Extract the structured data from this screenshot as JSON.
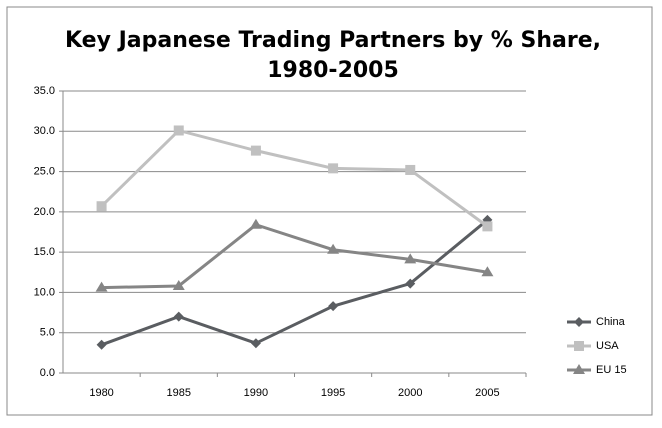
{
  "chart_data": {
    "type": "line",
    "title": "Key Japanese Trading Partners by % Share,",
    "subtitle": "1980-2005",
    "categories": [
      "1980",
      "1985",
      "1990",
      "1995",
      "2000",
      "2005"
    ],
    "series": [
      {
        "name": "China",
        "color": "#5a5d61",
        "marker": "diamond",
        "values": [
          3.5,
          7.0,
          3.7,
          8.3,
          11.1,
          19.0
        ]
      },
      {
        "name": "USA",
        "color": "#c0c0c0",
        "marker": "square",
        "values": [
          20.7,
          30.1,
          27.6,
          25.4,
          25.2,
          18.2
        ]
      },
      {
        "name": "EU 15",
        "color": "#858585",
        "marker": "triangle",
        "values": [
          10.6,
          10.8,
          18.4,
          15.3,
          14.1,
          12.5
        ]
      }
    ],
    "ylim": [
      0,
      35
    ],
    "yticks": [
      {
        "value": 0,
        "label": "0.0"
      },
      {
        "value": 5,
        "label": "5.0"
      },
      {
        "value": 10,
        "label": "10.0"
      },
      {
        "value": 15,
        "label": "15.0"
      },
      {
        "value": 20,
        "label": "20.0"
      },
      {
        "value": 25,
        "label": "25.0"
      },
      {
        "value": 30,
        "label": "30.0"
      },
      {
        "value": 35,
        "label": "35.0"
      }
    ],
    "grid": true,
    "legend": "right"
  }
}
